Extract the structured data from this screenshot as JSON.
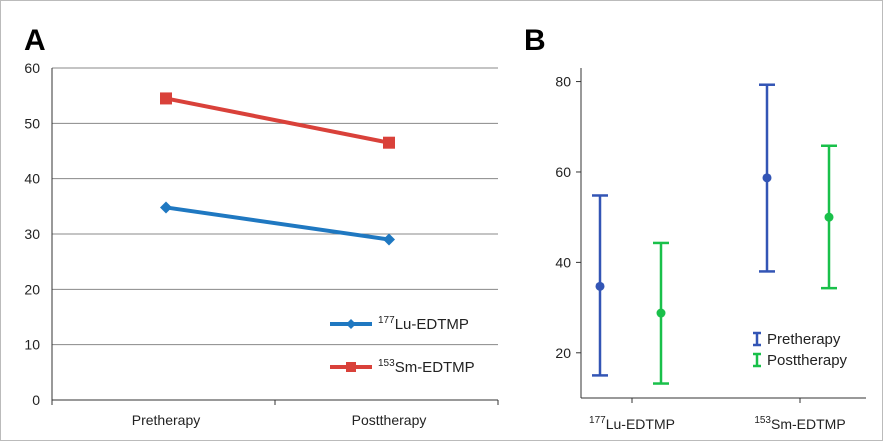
{
  "chart_data": [
    {
      "panel_label": "A",
      "type": "line",
      "categories": [
        "Pretherapy",
        "Posttherapy"
      ],
      "ylim": [
        0,
        60
      ],
      "yticks": [
        0,
        10,
        20,
        30,
        40,
        50,
        60
      ],
      "grid": true,
      "legend_position": "bottom-right",
      "series": [
        {
          "name_sup": "177",
          "name": "Lu-EDTMP",
          "color": "#1f78c1",
          "marker": "diamond",
          "values": [
            34.8,
            29
          ]
        },
        {
          "name_sup": "153",
          "name": "Sm-EDTMP",
          "color": "#d9413a",
          "marker": "square",
          "values": [
            54.5,
            46.5
          ]
        }
      ]
    },
    {
      "panel_label": "B",
      "type": "errorbar",
      "categories": [
        {
          "sup": "177",
          "label": "Lu-EDTMP"
        },
        {
          "sup": "153",
          "label": "Sm-EDTMP"
        }
      ],
      "ylim": [
        10,
        83
      ],
      "yticks": [
        20,
        40,
        60,
        80
      ],
      "grid": false,
      "legend_position": "bottom-right",
      "series": [
        {
          "name": "Pretherapy",
          "color": "#3355b5",
          "mean": [
            34.7,
            58.7
          ],
          "lower": [
            15,
            38
          ],
          "upper": [
            54.8,
            79.3
          ]
        },
        {
          "name": "Posttherapy",
          "color": "#19c04a",
          "mean": [
            28.8,
            50
          ],
          "lower": [
            13.2,
            34.3
          ],
          "upper": [
            44.3,
            65.8
          ]
        }
      ]
    }
  ]
}
